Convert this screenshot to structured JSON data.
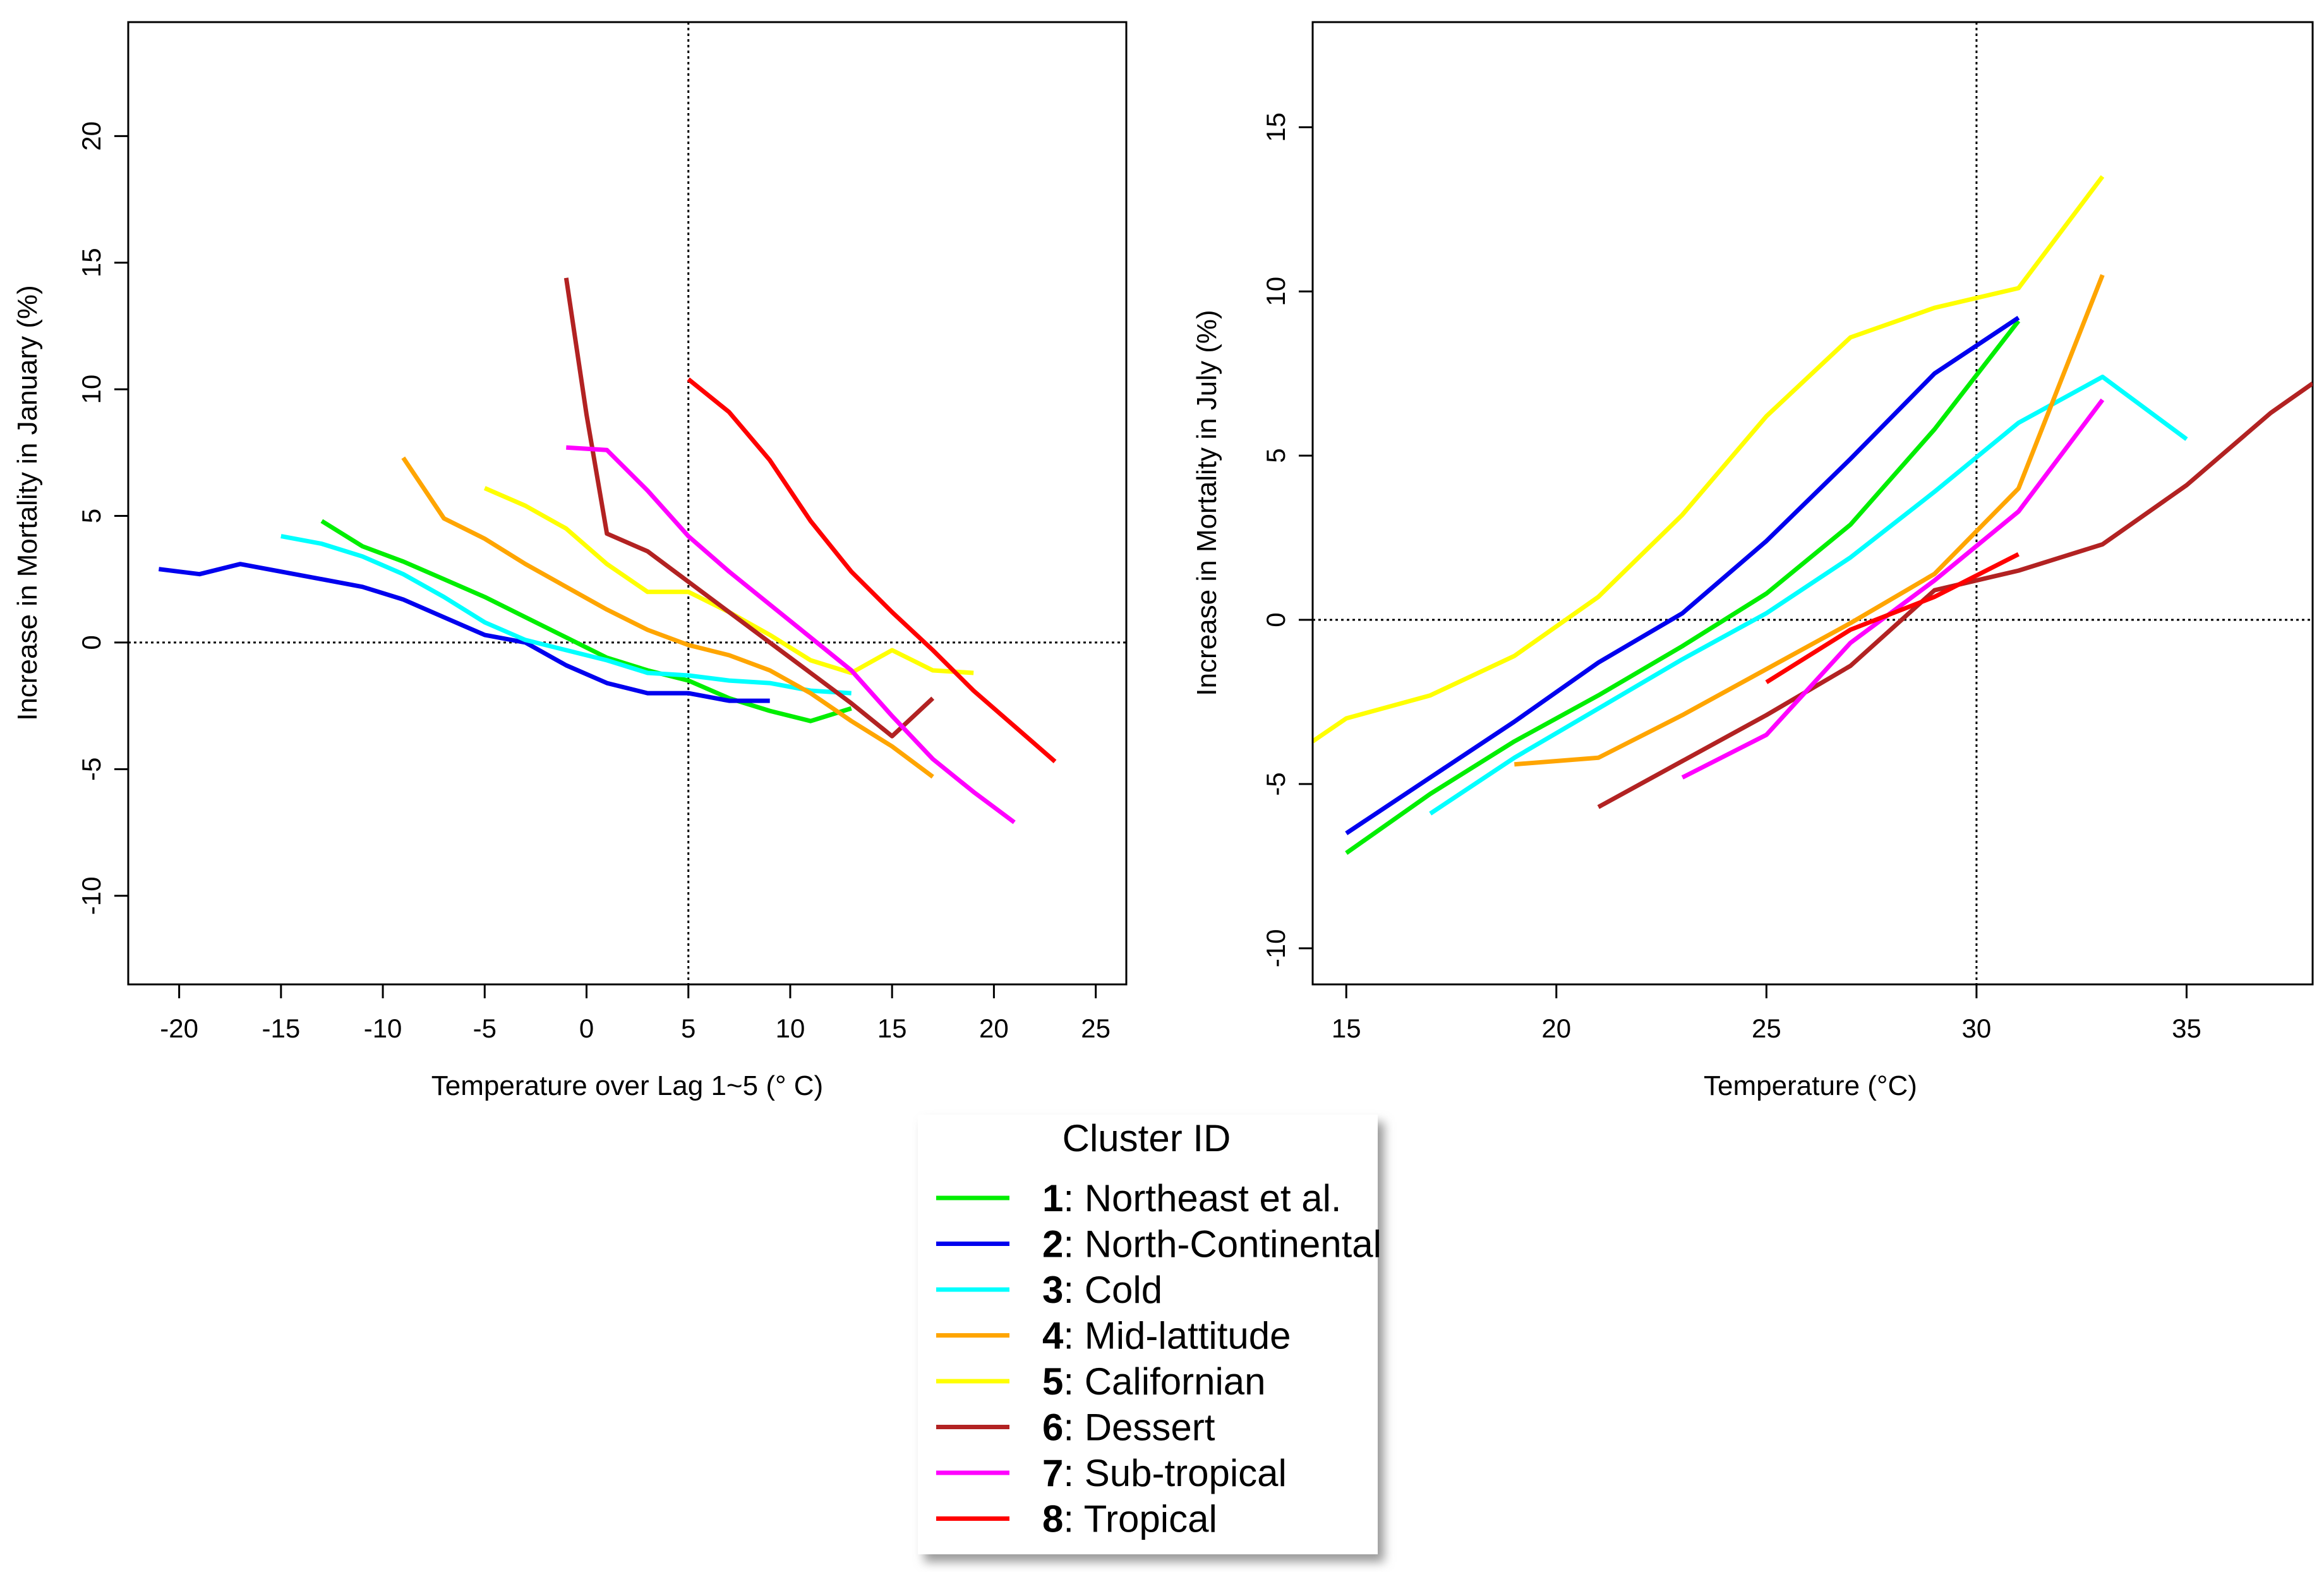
{
  "chart_data": [
    {
      "type": "line",
      "id": "january",
      "xlabel": "Temperature over Lag 1~5 (° C)",
      "ylabel": "Increase in Mortality in January (%)",
      "xlim": [
        -22.5,
        26.5
      ],
      "ylim": [
        -13.5,
        24.5
      ],
      "xticks": [
        -20,
        -15,
        -10,
        -5,
        0,
        5,
        10,
        15,
        20,
        25
      ],
      "yticks": [
        -10,
        -5,
        0,
        5,
        10,
        15,
        20
      ],
      "reference_lines": {
        "x": 5,
        "y": 0
      },
      "series": [
        {
          "name": "1",
          "color": "#00ee00",
          "points": [
            [
              -13,
              4.8
            ],
            [
              -11,
              3.8
            ],
            [
              -9,
              3.2
            ],
            [
              -7,
              2.5
            ],
            [
              -5,
              1.8
            ],
            [
              -3,
              1
            ],
            [
              -1,
              0.2
            ],
            [
              1,
              -0.6
            ],
            [
              3,
              -1.1
            ],
            [
              5,
              -1.5
            ],
            [
              7,
              -2.2
            ],
            [
              9,
              -2.7
            ],
            [
              11,
              -3.1
            ],
            [
              13,
              -2.6
            ]
          ]
        },
        {
          "name": "2",
          "color": "#0000ee",
          "points": [
            [
              -21,
              2.9
            ],
            [
              -20,
              2.8
            ],
            [
              -19,
              2.7
            ],
            [
              -17,
              3.1
            ],
            [
              -15,
              2.8
            ],
            [
              -13,
              2.5
            ],
            [
              -11,
              2.2
            ],
            [
              -9,
              1.7
            ],
            [
              -7,
              1
            ],
            [
              -5,
              0.3
            ],
            [
              -3,
              0
            ],
            [
              -1,
              -0.9
            ],
            [
              1,
              -1.6
            ],
            [
              3,
              -2
            ],
            [
              5,
              -2
            ],
            [
              7,
              -2.3
            ],
            [
              9,
              -2.3
            ]
          ]
        },
        {
          "name": "3",
          "color": "#00ffff",
          "points": [
            [
              -15,
              4.2
            ],
            [
              -13,
              3.9
            ],
            [
              -11,
              3.4
            ],
            [
              -9,
              2.7
            ],
            [
              -7,
              1.8
            ],
            [
              -5,
              0.8
            ],
            [
              -3,
              0.1
            ],
            [
              -1,
              -0.3
            ],
            [
              1,
              -0.7
            ],
            [
              3,
              -1.2
            ],
            [
              5,
              -1.3
            ],
            [
              7,
              -1.5
            ],
            [
              9,
              -1.6
            ],
            [
              11,
              -1.9
            ],
            [
              13,
              -2
            ]
          ]
        },
        {
          "name": "4",
          "color": "#ffa500",
          "points": [
            [
              -9,
              7.3
            ],
            [
              -7,
              4.9
            ],
            [
              -5,
              4.1
            ],
            [
              -3,
              3.1
            ],
            [
              -1,
              2.2
            ],
            [
              1,
              1.3
            ],
            [
              3,
              0.5
            ],
            [
              5,
              -0.1
            ],
            [
              7,
              -0.5
            ],
            [
              9,
              -1.1
            ],
            [
              11,
              -2
            ],
            [
              13,
              -3.1
            ],
            [
              15,
              -4.1
            ],
            [
              17,
              -5.3
            ]
          ]
        },
        {
          "name": "5",
          "color": "#ffff00",
          "points": [
            [
              -5,
              6.1
            ],
            [
              -3,
              5.4
            ],
            [
              -1,
              4.5
            ],
            [
              1,
              3.1
            ],
            [
              3,
              2
            ],
            [
              5,
              2
            ],
            [
              7,
              1.2
            ],
            [
              9,
              0.3
            ],
            [
              11,
              -0.7
            ],
            [
              13,
              -1.2
            ],
            [
              15,
              -0.3
            ],
            [
              17,
              -1.1
            ],
            [
              19,
              -1.2
            ]
          ]
        },
        {
          "name": "6",
          "color": "#b22222",
          "points": [
            [
              -1,
              14.4
            ],
            [
              0,
              9
            ],
            [
              1,
              4.3
            ],
            [
              3,
              3.6
            ],
            [
              5,
              2.4
            ],
            [
              7,
              1.2
            ],
            [
              9,
              0
            ],
            [
              11,
              -1.2
            ],
            [
              13,
              -2.4
            ],
            [
              15,
              -3.7
            ],
            [
              17,
              -2.2
            ]
          ]
        },
        {
          "name": "7",
          "color": "#ff00ff",
          "points": [
            [
              -1,
              7.7
            ],
            [
              1,
              7.6
            ],
            [
              3,
              6
            ],
            [
              5,
              4.2
            ],
            [
              7,
              2.8
            ],
            [
              9,
              1.5
            ],
            [
              11,
              0.2
            ],
            [
              13,
              -1.1
            ],
            [
              15,
              -2.9
            ],
            [
              17,
              -4.6
            ],
            [
              19,
              -5.9
            ],
            [
              21,
              -7.1
            ]
          ]
        },
        {
          "name": "8",
          "color": "#ff0000",
          "points": [
            [
              5,
              10.4
            ],
            [
              7,
              9.1
            ],
            [
              9,
              7.2
            ],
            [
              11,
              4.8
            ],
            [
              13,
              2.8
            ],
            [
              15,
              1.2
            ],
            [
              17,
              -0.3
            ],
            [
              19,
              -1.9
            ],
            [
              21,
              -3.3
            ],
            [
              23,
              -4.7
            ]
          ]
        }
      ]
    },
    {
      "type": "line",
      "id": "july",
      "xlabel": "Temperature (°C)",
      "ylabel": "Increase in Mortality in July (%)",
      "xlim": [
        14.2,
        38
      ],
      "ylim": [
        -11.1,
        18.2
      ],
      "xticks": [
        15,
        20,
        25,
        30,
        35
      ],
      "yticks": [
        -10,
        -5,
        0,
        5,
        10,
        15
      ],
      "reference_lines": {
        "x": 30,
        "y": 0
      },
      "series": [
        {
          "name": "1",
          "color": "#00ee00",
          "points": [
            [
              15,
              -7.1
            ],
            [
              17,
              -5.3
            ],
            [
              19,
              -3.7
            ],
            [
              21,
              -2.3
            ],
            [
              23,
              -0.8
            ],
            [
              25,
              0.8
            ],
            [
              27,
              2.9
            ],
            [
              29,
              5.8
            ],
            [
              31,
              9.1
            ]
          ]
        },
        {
          "name": "2",
          "color": "#0000ee",
          "points": [
            [
              15,
              -6.5
            ],
            [
              17,
              -4.8
            ],
            [
              19,
              -3.1
            ],
            [
              21,
              -1.3
            ],
            [
              23,
              0.2
            ],
            [
              25,
              2.4
            ],
            [
              27,
              4.9
            ],
            [
              29,
              7.5
            ],
            [
              31,
              9.2
            ]
          ]
        },
        {
          "name": "3",
          "color": "#00ffff",
          "points": [
            [
              17,
              -5.9
            ],
            [
              19,
              -4.2
            ],
            [
              21,
              -2.7
            ],
            [
              23,
              -1.2
            ],
            [
              25,
              0.2
            ],
            [
              27,
              1.9
            ],
            [
              29,
              3.9
            ],
            [
              31,
              6
            ],
            [
              33,
              7.4
            ],
            [
              35,
              5.5
            ]
          ]
        },
        {
          "name": "4",
          "color": "#ffa500",
          "points": [
            [
              19,
              -4.4
            ],
            [
              21,
              -4.2
            ],
            [
              23,
              -2.9
            ],
            [
              25,
              -1.5
            ],
            [
              27,
              -0.1
            ],
            [
              29,
              1.4
            ],
            [
              31,
              4
            ],
            [
              33,
              10.5
            ]
          ]
        },
        {
          "name": "5",
          "color": "#ffff00",
          "points": [
            [
              14.2,
              -3.7
            ],
            [
              15,
              -3
            ],
            [
              17,
              -2.3
            ],
            [
              19,
              -1.1
            ],
            [
              21,
              0.7
            ],
            [
              23,
              3.2
            ],
            [
              25,
              6.2
            ],
            [
              27,
              8.6
            ],
            [
              29,
              9.5
            ],
            [
              31,
              10.1
            ],
            [
              33,
              13.5
            ]
          ]
        },
        {
          "name": "6",
          "color": "#b22222",
          "points": [
            [
              21,
              -5.7
            ],
            [
              23,
              -4.3
            ],
            [
              25,
              -2.9
            ],
            [
              27,
              -1.4
            ],
            [
              29,
              0.9
            ],
            [
              31,
              1.5
            ],
            [
              33,
              2.3
            ],
            [
              35,
              4.1
            ],
            [
              37,
              6.3
            ],
            [
              38,
              7.2
            ]
          ]
        },
        {
          "name": "7",
          "color": "#ff00ff",
          "points": [
            [
              23,
              -4.8
            ],
            [
              25,
              -3.5
            ],
            [
              27,
              -0.7
            ],
            [
              29,
              1.2
            ],
            [
              31,
              3.3
            ],
            [
              33,
              6.7
            ]
          ]
        },
        {
          "name": "8",
          "color": "#ff0000",
          "points": [
            [
              25,
              -1.9
            ],
            [
              27,
              -0.3
            ],
            [
              29,
              0.7
            ],
            [
              31,
              2
            ]
          ]
        }
      ]
    }
  ],
  "legend": {
    "title": "Cluster ID",
    "items": [
      {
        "num": "1",
        "label": ": Northeast et al.",
        "color": "#00ee00"
      },
      {
        "num": "2",
        "label": ": North-Continental",
        "color": "#0000ee"
      },
      {
        "num": "3",
        "label": ": Cold",
        "color": "#00ffff"
      },
      {
        "num": "4",
        "label": ": Mid-lattitude",
        "color": "#ffa500"
      },
      {
        "num": "5",
        "label": ": Californian",
        "color": "#ffff00"
      },
      {
        "num": "6",
        "label": ": Dessert",
        "color": "#b22222"
      },
      {
        "num": "7",
        "label": ": Sub-tropical",
        "color": "#ff00ff"
      },
      {
        "num": "8",
        "label": ": Tropical",
        "color": "#ff0000"
      }
    ]
  }
}
